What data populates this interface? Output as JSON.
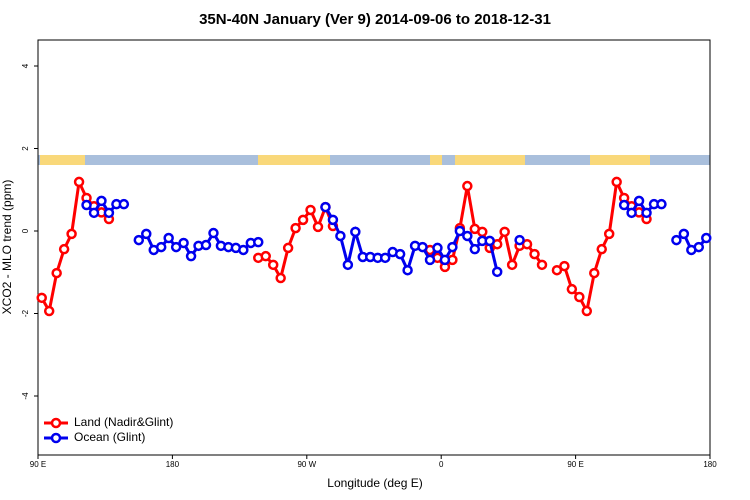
{
  "chart_data": {
    "type": "line",
    "title": "35N-40N January (Ver 9)   2014-09-06 to 2018-12-31",
    "xlabel": "Longitude (deg E)",
    "ylabel": "XCO2 - MLO trend (ppm)",
    "x": [
      92.5,
      97.5,
      102.5,
      107.5,
      112.5,
      117.5,
      122.5,
      127.5,
      132.5,
      137.5,
      142.5,
      147.5,
      152.5,
      157.5,
      162.5,
      167.5,
      172.5,
      177.5,
      182.5,
      187.5,
      192.5,
      197.5,
      202.5,
      207.5,
      212.5,
      217.5,
      222.5,
      227.5,
      232.5,
      237.5,
      242.5,
      247.5,
      252.5,
      257.5,
      262.5,
      267.5,
      272.5,
      277.5,
      282.5,
      287.5,
      292.5,
      297.5,
      302.5,
      307.5,
      312.5,
      317.5,
      322.5,
      327.5,
      332.5,
      337.5,
      342.5,
      347.5,
      352.5,
      357.5,
      362.5,
      367.5,
      372.5,
      377.5,
      382.5,
      387.5,
      392.5,
      397.5,
      402.5,
      407.5,
      412.5,
      417.5,
      422.5,
      427.5,
      432.5,
      437.5,
      442.5,
      447.5,
      452.5,
      457.5,
      462.5,
      467.5,
      472.5,
      477.5,
      482.5,
      487.5,
      492.5,
      497.5,
      502.5,
      507.5,
      512.5,
      517.5,
      522.5,
      527.5,
      532.5,
      537.5
    ],
    "series": [
      {
        "name": "Land (Nadir&Glint)",
        "color": "#ff0000",
        "values": [
          -1.62,
          -1.94,
          -1.02,
          -0.44,
          -0.07,
          1.19,
          0.8,
          0.6,
          0.45,
          0.29,
          null,
          null,
          null,
          null,
          null,
          null,
          null,
          null,
          null,
          null,
          null,
          null,
          null,
          null,
          null,
          null,
          null,
          null,
          null,
          -0.65,
          -0.61,
          -0.82,
          -1.14,
          -0.41,
          0.07,
          0.27,
          0.51,
          0.1,
          0.58,
          0.12,
          null,
          null,
          null,
          null,
          null,
          null,
          null,
          null,
          null,
          null,
          null,
          null,
          -0.46,
          -0.65,
          -0.87,
          -0.7,
          0.07,
          1.09,
          0.05,
          -0.02,
          -0.41,
          -0.32,
          -0.02,
          -0.82,
          -0.36,
          -0.32,
          -0.56,
          -0.82,
          null,
          -0.95,
          -0.85,
          -1.41,
          -1.6,
          -1.94,
          -1.02,
          -0.44,
          -0.07,
          1.19,
          0.8,
          0.6,
          0.45,
          0.29,
          null,
          null,
          null,
          null,
          null,
          null,
          null,
          null
        ]
      },
      {
        "name": "Ocean (Glint)",
        "color": "#0000ee",
        "values": [
          null,
          null,
          null,
          null,
          null,
          null,
          0.63,
          0.44,
          0.73,
          0.44,
          0.65,
          0.65,
          null,
          -0.22,
          -0.07,
          -0.46,
          -0.39,
          -0.17,
          -0.39,
          -0.29,
          -0.61,
          -0.36,
          -0.34,
          -0.05,
          -0.36,
          -0.39,
          -0.41,
          -0.46,
          -0.29,
          -0.27,
          null,
          null,
          null,
          null,
          null,
          null,
          null,
          null,
          0.58,
          0.27,
          -0.12,
          -0.82,
          -0.02,
          -0.63,
          -0.63,
          -0.65,
          -0.65,
          -0.51,
          -0.56,
          -0.95,
          -0.36,
          -0.39,
          -0.7,
          -0.41,
          -0.7,
          -0.39,
          0.0,
          -0.12,
          -0.44,
          -0.24,
          -0.24,
          -0.99,
          null,
          null,
          -0.22,
          null,
          null,
          null,
          null,
          null,
          null,
          null,
          null,
          null,
          null,
          null,
          null,
          null,
          0.63,
          0.44,
          0.73,
          0.44,
          0.65,
          0.65,
          null,
          -0.22,
          -0.07,
          -0.46,
          -0.39,
          -0.17
        ]
      }
    ],
    "xlim": [
      90,
      540
    ],
    "xticks": [
      {
        "value": 90,
        "label": "90 E"
      },
      180,
      {
        "value": 270,
        "label": "90 W"
      },
      {
        "value": 360,
        "label": "0"
      },
      {
        "value": 450,
        "label": "90 E"
      },
      {
        "value": 540,
        "label": "180"
      }
    ],
    "ylim": [
      -5.43,
      4.63
    ],
    "yticks": [
      -4,
      -2,
      0,
      2,
      4
    ],
    "legend": "bottom-left"
  }
}
